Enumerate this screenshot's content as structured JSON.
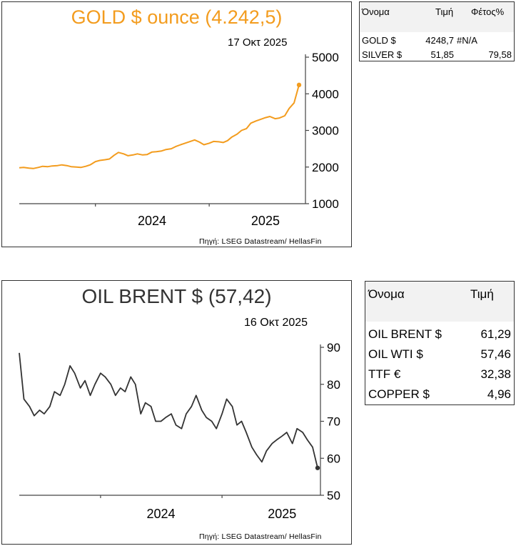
{
  "gold_panel": {
    "title": "GOLD $ ounce (4.242,5)",
    "date": "17 Οκτ 2025",
    "source": "Πηγή: LSEG Datastream/ HellasFin"
  },
  "oil_panel": {
    "title": "OIL BRENT $ (57,42)",
    "date": "16 Οκτ 2025",
    "source": "Πηγή: LSEG Datastream/ HellasFin"
  },
  "metals_table": {
    "headers": [
      "Όνομα",
      "Τιμή",
      "Φέτος%"
    ],
    "rows": [
      [
        "GOLD $",
        "4248,7",
        "#N/A"
      ],
      [
        "SILVER $",
        "51,85",
        "79,58"
      ]
    ]
  },
  "energy_table": {
    "headers": [
      "Όνομα",
      "Τιμή"
    ],
    "rows": [
      [
        "OIL BRENT $",
        "61,29"
      ],
      [
        "OIL WTI $",
        "57,46"
      ],
      [
        "TTF €",
        "32,38"
      ],
      [
        "COPPER $",
        "4,96"
      ]
    ]
  },
  "colors": {
    "gold": "#f39c1e",
    "oil": "#333333",
    "axis": "#444444"
  },
  "chart_data": [
    {
      "type": "line",
      "title": "GOLD $ ounce (4.242,5)",
      "xlabel": "",
      "ylabel": "",
      "x_ticks": [
        "2024",
        "2025"
      ],
      "y_ticks": [
        1000,
        2000,
        3000,
        4000,
        5000
      ],
      "ylim": [
        1000,
        5000
      ],
      "x_range": [
        "2023-05",
        "2025-10-17"
      ],
      "y_axis_side": "right",
      "grid": false,
      "end_marker": true,
      "series": [
        {
          "x": [
            "2023-05-01",
            "2023-05-15",
            "2023-06-01",
            "2023-06-15",
            "2023-07-01",
            "2023-07-15",
            "2023-08-01",
            "2023-08-15",
            "2023-09-01",
            "2023-09-15",
            "2023-10-01",
            "2023-10-15",
            "2023-11-01",
            "2023-11-15",
            "2023-12-01",
            "2023-12-15",
            "2024-01-01",
            "2024-01-15",
            "2024-02-01",
            "2024-02-15",
            "2024-03-01",
            "2024-03-15",
            "2024-04-01",
            "2024-04-15",
            "2024-05-01",
            "2024-05-15",
            "2024-06-01",
            "2024-06-15",
            "2024-07-01",
            "2024-07-15",
            "2024-08-01",
            "2024-08-15",
            "2024-09-01",
            "2024-09-15",
            "2024-10-01",
            "2024-10-15",
            "2024-11-01",
            "2024-11-15",
            "2024-12-01",
            "2024-12-15",
            "2025-01-01",
            "2025-01-15",
            "2025-02-01",
            "2025-02-15",
            "2025-03-01",
            "2025-03-15",
            "2025-04-01",
            "2025-04-15",
            "2025-05-01",
            "2025-05-15",
            "2025-06-01",
            "2025-06-15",
            "2025-07-01",
            "2025-07-15",
            "2025-08-01",
            "2025-08-15",
            "2025-09-01",
            "2025-09-15",
            "2025-10-01",
            "2025-10-17"
          ],
          "values": [
            1980,
            1990,
            1970,
            1960,
            1990,
            2020,
            2010,
            2030,
            2040,
            2060,
            2040,
            2010,
            2000,
            1990,
            2020,
            2060,
            2150,
            2180,
            2200,
            2220,
            2320,
            2400,
            2360,
            2310,
            2330,
            2360,
            2330,
            2340,
            2410,
            2420,
            2440,
            2480,
            2500,
            2560,
            2610,
            2650,
            2700,
            2740,
            2680,
            2610,
            2650,
            2700,
            2690,
            2670,
            2720,
            2820,
            2900,
            3000,
            3050,
            3200,
            3260,
            3300,
            3350,
            3380,
            3320,
            3340,
            3400,
            3600,
            3750,
            4242
          ]
        }
      ]
    },
    {
      "type": "line",
      "title": "OIL BRENT $ (57,42)",
      "xlabel": "",
      "ylabel": "",
      "x_ticks": [
        "2024",
        "2025"
      ],
      "y_ticks": [
        50,
        60,
        70,
        80,
        90
      ],
      "ylim": [
        50,
        90
      ],
      "x_range": [
        "2023-05",
        "2025-10-16"
      ],
      "y_axis_side": "right",
      "grid": false,
      "end_marker": true,
      "series": [
        {
          "x": [
            "2023-05-01",
            "2023-05-15",
            "2023-06-01",
            "2023-06-15",
            "2023-07-01",
            "2023-07-15",
            "2023-08-01",
            "2023-08-15",
            "2023-09-01",
            "2023-09-15",
            "2023-10-01",
            "2023-10-15",
            "2023-11-01",
            "2023-11-15",
            "2023-12-01",
            "2023-12-15",
            "2024-01-01",
            "2024-01-15",
            "2024-02-01",
            "2024-02-15",
            "2024-03-01",
            "2024-03-15",
            "2024-04-01",
            "2024-04-15",
            "2024-05-01",
            "2024-05-15",
            "2024-06-01",
            "2024-06-15",
            "2024-07-01",
            "2024-07-15",
            "2024-08-01",
            "2024-08-15",
            "2024-09-01",
            "2024-09-15",
            "2024-10-01",
            "2024-10-15",
            "2024-11-01",
            "2024-11-15",
            "2024-12-01",
            "2024-12-15",
            "2025-01-01",
            "2025-01-15",
            "2025-02-01",
            "2025-02-15",
            "2025-03-01",
            "2025-03-15",
            "2025-04-01",
            "2025-04-15",
            "2025-05-01",
            "2025-05-15",
            "2025-06-01",
            "2025-06-15",
            "2025-07-01",
            "2025-07-15",
            "2025-08-01",
            "2025-08-15",
            "2025-09-01",
            "2025-09-15",
            "2025-10-01",
            "2025-10-16"
          ],
          "values": [
            88.5,
            76,
            74,
            71.5,
            73,
            72,
            74,
            78,
            77,
            80,
            85,
            83,
            79,
            81,
            77,
            80,
            83,
            82,
            80,
            77,
            79,
            78,
            82,
            80,
            72,
            75,
            74,
            70,
            70,
            71,
            72,
            69,
            68,
            72,
            74,
            77,
            73,
            71,
            70,
            68,
            72,
            76,
            74,
            69,
            70,
            67,
            63,
            61,
            59,
            62,
            64,
            65,
            66,
            67,
            64,
            68,
            67,
            65,
            63,
            57.4
          ]
        }
      ]
    }
  ]
}
